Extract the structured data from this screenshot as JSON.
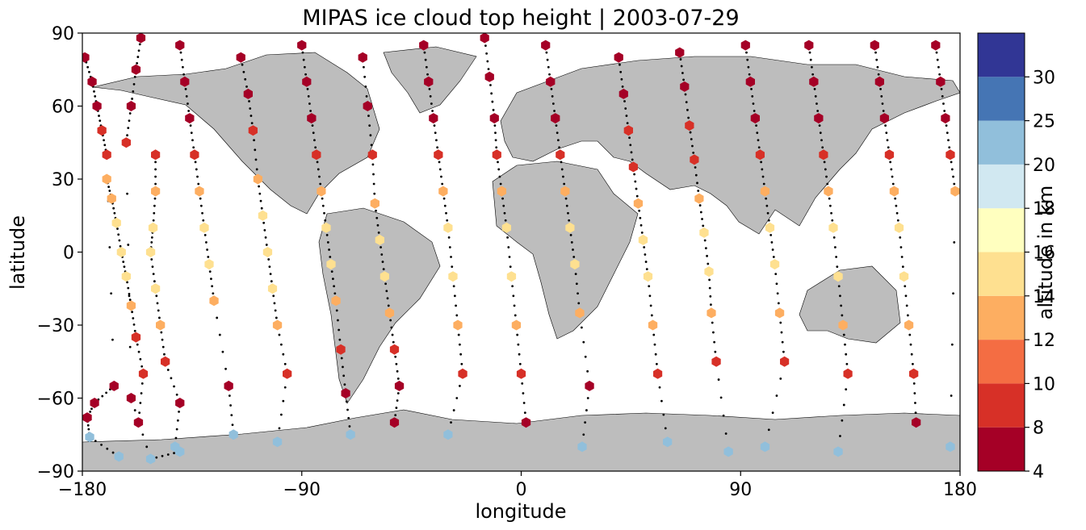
{
  "chart_data": {
    "type": "scatter",
    "title": "MIPAS ice cloud top height | 2003-07-29",
    "xlabel": "longitude",
    "ylabel": "latitude",
    "xlim": [
      -180,
      180
    ],
    "ylim": [
      -90,
      90
    ],
    "xticks": [
      -180,
      -90,
      0,
      90,
      180
    ],
    "xtick_labels": [
      "−180",
      "−90",
      "0",
      "90",
      "180"
    ],
    "yticks": [
      -90,
      -60,
      -30,
      0,
      30,
      60,
      90
    ],
    "ytick_labels": [
      "−90",
      "−60",
      "−30",
      "0",
      "30",
      "60",
      "90"
    ],
    "background_map": "coastlines with grey land",
    "land_color": "#bdbdbd",
    "colorbar": {
      "label": "altitude in km",
      "levels": [
        4,
        8,
        10,
        12,
        14,
        16,
        18,
        20,
        25,
        30
      ],
      "level_labels": [
        "4",
        "8",
        "10",
        "12",
        "14",
        "16",
        "18",
        "20",
        "25",
        "30"
      ],
      "colors": [
        "#a50026",
        "#d73027",
        "#f46d43",
        "#fdae61",
        "#fee090",
        "#ffffbf",
        "#d1e8f1",
        "#91bfdb",
        "#4575b4",
        "#313695"
      ]
    },
    "marker": "hexagon",
    "series": [
      {
        "values": [
          [
            -179,
            80
          ],
          [
            -176,
            70
          ],
          [
            -174,
            60
          ],
          [
            -172,
            50
          ],
          [
            -170,
            40
          ],
          [
            -167,
            -55
          ],
          [
            -175,
            -62
          ],
          [
            -178,
            -68
          ],
          [
            -177,
            -76
          ],
          [
            -165,
            -84
          ]
        ]
      },
      {
        "values": [
          [
            -170,
            30
          ],
          [
            -168,
            22
          ],
          [
            -166,
            12
          ],
          [
            -164,
            0
          ],
          [
            -162,
            -10
          ],
          [
            -160,
            -22
          ],
          [
            -158,
            -35
          ],
          [
            -155,
            -50
          ],
          [
            -157,
            -70
          ]
        ]
      },
      {
        "values": [
          [
            -156,
            88
          ],
          [
            -158,
            75
          ],
          [
            -160,
            60
          ],
          [
            -162,
            45
          ],
          [
            -160,
            -60
          ],
          [
            -152,
            -85
          ],
          [
            -140,
            -82
          ]
        ]
      },
      {
        "values": [
          [
            -150,
            40
          ],
          [
            -150,
            25
          ],
          [
            -151,
            10
          ],
          [
            -152,
            0
          ],
          [
            -150,
            -15
          ],
          [
            -148,
            -30
          ],
          [
            -146,
            -45
          ],
          [
            -140,
            -62
          ],
          [
            -142,
            -80
          ]
        ]
      },
      {
        "values": [
          [
            -140,
            85
          ],
          [
            -138,
            70
          ],
          [
            -136,
            55
          ],
          [
            -134,
            40
          ],
          [
            -132,
            25
          ],
          [
            -130,
            10
          ],
          [
            -128,
            -5
          ],
          [
            -126,
            -20
          ],
          [
            -120,
            -55
          ],
          [
            -118,
            -75
          ]
        ]
      },
      {
        "values": [
          [
            -115,
            80
          ],
          [
            -112,
            65
          ],
          [
            -110,
            50
          ],
          [
            -108,
            30
          ],
          [
            -106,
            15
          ],
          [
            -104,
            0
          ],
          [
            -102,
            -15
          ],
          [
            -100,
            -30
          ],
          [
            -96,
            -50
          ],
          [
            -100,
            -78
          ]
        ]
      },
      {
        "values": [
          [
            -90,
            85
          ],
          [
            -88,
            70
          ],
          [
            -86,
            55
          ],
          [
            -84,
            40
          ],
          [
            -82,
            25
          ],
          [
            -80,
            10
          ],
          [
            -78,
            -5
          ],
          [
            -76,
            -20
          ],
          [
            -74,
            -40
          ],
          [
            -72,
            -58
          ],
          [
            -70,
            -75
          ]
        ]
      },
      {
        "values": [
          [
            -65,
            80
          ],
          [
            -63,
            60
          ],
          [
            -61,
            40
          ],
          [
            -60,
            20
          ],
          [
            -58,
            5
          ],
          [
            -56,
            -10
          ],
          [
            -54,
            -25
          ],
          [
            -52,
            -40
          ],
          [
            -50,
            -55
          ],
          [
            -52,
            -70
          ]
        ]
      },
      {
        "values": [
          [
            -40,
            85
          ],
          [
            -38,
            70
          ],
          [
            -36,
            55
          ],
          [
            -34,
            40
          ],
          [
            -32,
            25
          ],
          [
            -30,
            10
          ],
          [
            -28,
            -10
          ],
          [
            -26,
            -30
          ],
          [
            -24,
            -50
          ],
          [
            -30,
            -75
          ]
        ]
      },
      {
        "values": [
          [
            -15,
            88
          ],
          [
            -13,
            72
          ],
          [
            -11,
            55
          ],
          [
            -10,
            40
          ],
          [
            -8,
            25
          ],
          [
            -6,
            10
          ],
          [
            -4,
            -10
          ],
          [
            -2,
            -30
          ],
          [
            0,
            -50
          ],
          [
            2,
            -70
          ]
        ]
      },
      {
        "values": [
          [
            10,
            85
          ],
          [
            12,
            70
          ],
          [
            14,
            55
          ],
          [
            16,
            40
          ],
          [
            18,
            25
          ],
          [
            20,
            10
          ],
          [
            22,
            -5
          ],
          [
            24,
            -25
          ],
          [
            28,
            -55
          ],
          [
            25,
            -80
          ]
        ]
      },
      {
        "values": [
          [
            40,
            80
          ],
          [
            42,
            65
          ],
          [
            44,
            50
          ],
          [
            46,
            35
          ],
          [
            48,
            20
          ],
          [
            50,
            5
          ],
          [
            52,
            -10
          ],
          [
            54,
            -30
          ],
          [
            56,
            -50
          ],
          [
            60,
            -78
          ]
        ]
      },
      {
        "values": [
          [
            65,
            82
          ],
          [
            67,
            68
          ],
          [
            69,
            52
          ],
          [
            71,
            38
          ],
          [
            73,
            22
          ],
          [
            75,
            8
          ],
          [
            77,
            -8
          ],
          [
            78,
            -25
          ],
          [
            80,
            -45
          ],
          [
            85,
            -82
          ]
        ]
      },
      {
        "values": [
          [
            92,
            85
          ],
          [
            94,
            70
          ],
          [
            96,
            55
          ],
          [
            98,
            40
          ],
          [
            100,
            25
          ],
          [
            102,
            10
          ],
          [
            104,
            -5
          ],
          [
            106,
            -25
          ],
          [
            108,
            -45
          ],
          [
            100,
            -80
          ]
        ]
      },
      {
        "values": [
          [
            118,
            85
          ],
          [
            120,
            70
          ],
          [
            122,
            55
          ],
          [
            124,
            40
          ],
          [
            126,
            25
          ],
          [
            128,
            10
          ],
          [
            130,
            -10
          ],
          [
            132,
            -30
          ],
          [
            134,
            -50
          ],
          [
            130,
            -82
          ]
        ]
      },
      {
        "values": [
          [
            145,
            85
          ],
          [
            147,
            70
          ],
          [
            149,
            55
          ],
          [
            151,
            40
          ],
          [
            153,
            25
          ],
          [
            155,
            10
          ],
          [
            157,
            -10
          ],
          [
            159,
            -30
          ],
          [
            161,
            -50
          ],
          [
            162,
            -70
          ]
        ]
      },
      {
        "values": [
          [
            170,
            85
          ],
          [
            172,
            70
          ],
          [
            174,
            55
          ],
          [
            176,
            40
          ],
          [
            178,
            25
          ],
          [
            176,
            -80
          ]
        ]
      }
    ]
  }
}
